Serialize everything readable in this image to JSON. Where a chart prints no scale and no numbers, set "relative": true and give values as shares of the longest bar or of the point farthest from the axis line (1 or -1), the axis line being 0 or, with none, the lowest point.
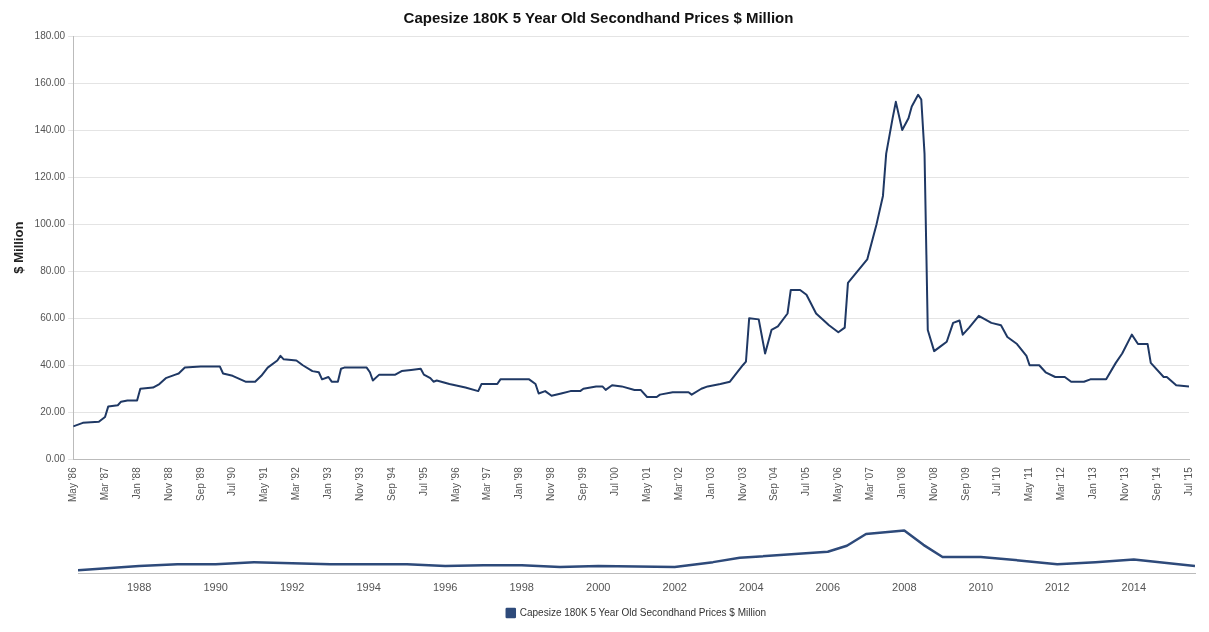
{
  "chart_data": [
    {
      "type": "line",
      "title": "Capesize 180K 5 Year Old Secondhand Prices $ Million",
      "ylabel": "$ Million",
      "x": [
        "1986-05",
        "1986-08",
        "1987-01",
        "1987-03",
        "1987-04",
        "1987-07",
        "1987-08",
        "1987-10",
        "1988-01",
        "1988-02",
        "1988-06",
        "1988-08",
        "1988-10",
        "1989-01",
        "1989-02",
        "1989-04",
        "1989-09",
        "1990-03",
        "1990-04",
        "1990-07",
        "1990-11",
        "1991-02",
        "1991-04",
        "1991-06",
        "1991-09",
        "1991-10",
        "1991-11",
        "1992-03",
        "1992-05",
        "1992-08",
        "1992-10",
        "1992-11",
        "1993-01",
        "1993-02",
        "1993-04",
        "1993-05",
        "1993-06",
        "1994-01",
        "1994-02",
        "1994-03",
        "1994-05",
        "1994-10",
        "1994-12",
        "1995-03",
        "1995-06",
        "1995-07",
        "1995-09",
        "1995-10",
        "1995-11",
        "1996-03",
        "1996-08",
        "1996-12",
        "1997-01",
        "1997-06",
        "1997-07",
        "1998-04",
        "1998-06",
        "1998-07",
        "1998-09",
        "1998-11",
        "1999-02",
        "1999-05",
        "1999-08",
        "1999-09",
        "2000-01",
        "2000-03",
        "2000-04",
        "2000-06",
        "2000-09",
        "2001-01",
        "2001-03",
        "2001-05",
        "2001-08",
        "2001-09",
        "2002-01",
        "2002-06",
        "2002-07",
        "2002-10",
        "2002-12",
        "2003-04",
        "2003-07",
        "2003-11",
        "2003-12",
        "2004-01",
        "2004-04",
        "2004-06",
        "2004-08",
        "2004-10",
        "2005-01",
        "2005-02",
        "2005-05",
        "2005-07",
        "2005-10",
        "2006-02",
        "2006-05",
        "2006-07",
        "2006-08",
        "2006-11",
        "2007-02",
        "2007-05",
        "2007-07",
        "2007-08",
        "2007-10",
        "2007-11",
        "2008-01",
        "2008-03",
        "2008-04",
        "2008-06",
        "2008-07",
        "2008-08",
        "2008-09",
        "2008-11",
        "2009-01",
        "2009-03",
        "2009-05",
        "2009-07",
        "2009-08",
        "2009-10",
        "2010-01",
        "2010-05",
        "2010-08",
        "2010-10",
        "2011-01",
        "2011-04",
        "2011-05",
        "2011-08",
        "2011-10",
        "2012-01",
        "2012-04",
        "2012-06",
        "2012-10",
        "2012-12",
        "2013-05",
        "2013-08",
        "2013-10",
        "2014-01",
        "2014-03",
        "2014-06",
        "2014-07",
        "2014-11",
        "2014-12",
        "2015-03",
        "2015-07"
      ],
      "series": [
        {
          "color": "#1f3864",
          "values": [
            14,
            15.5,
            16,
            18,
            22.5,
            23,
            24.5,
            25,
            25,
            30,
            30.5,
            32,
            34.5,
            36,
            36.5,
            39,
            39.5,
            39.5,
            36.5,
            35.5,
            33,
            33,
            35.5,
            39,
            42,
            44,
            42.5,
            42,
            40,
            37.5,
            37,
            34,
            35,
            33,
            33,
            38.5,
            39,
            39,
            37,
            33.5,
            36,
            36,
            37.5,
            38,
            38.5,
            36,
            34.5,
            33,
            33.5,
            32,
            30.5,
            29,
            32,
            32,
            34,
            34,
            32,
            28,
            29,
            27,
            28,
            29,
            29,
            30,
            31,
            31,
            29.5,
            31.5,
            31,
            29.5,
            29.5,
            26.5,
            26.5,
            27.5,
            28.5,
            28.5,
            27.5,
            30,
            31,
            32,
            33,
            40,
            41.5,
            60,
            59.5,
            45,
            55,
            56.5,
            62,
            72,
            72,
            70,
            62,
            57,
            54,
            56,
            75,
            80,
            85,
            100,
            112,
            130,
            145,
            152,
            140,
            145,
            150,
            155,
            153,
            130,
            55,
            46,
            48,
            50,
            58,
            59,
            53,
            56,
            61,
            58,
            57,
            52,
            49,
            44,
            40,
            40,
            37,
            35,
            35,
            33,
            33,
            34,
            34,
            41,
            45,
            53,
            49,
            49,
            41,
            35,
            35,
            31.5,
            31
          ]
        }
      ],
      "xlim": [
        "1986-05",
        "2015-07"
      ],
      "xticks": [
        {
          "value": "1986-05",
          "label": "May '86"
        },
        {
          "value": "1987-03",
          "label": "Mar '87"
        },
        {
          "value": "1988-01",
          "label": "Jan '88"
        },
        {
          "value": "1988-11",
          "label": "Nov '88"
        },
        {
          "value": "1989-09",
          "label": "Sep '89"
        },
        {
          "value": "1990-07",
          "label": "Jul '90"
        },
        {
          "value": "1991-05",
          "label": "May '91"
        },
        {
          "value": "1992-03",
          "label": "Mar '92"
        },
        {
          "value": "1993-01",
          "label": "Jan '93"
        },
        {
          "value": "1993-11",
          "label": "Nov '93"
        },
        {
          "value": "1994-09",
          "label": "Sep '94"
        },
        {
          "value": "1995-07",
          "label": "Jul '95"
        },
        {
          "value": "1996-05",
          "label": "May '96"
        },
        {
          "value": "1997-03",
          "label": "Mar '97"
        },
        {
          "value": "1998-01",
          "label": "Jan '98"
        },
        {
          "value": "1998-11",
          "label": "Nov '98"
        },
        {
          "value": "1999-09",
          "label": "Sep '99"
        },
        {
          "value": "2000-07",
          "label": "Jul '00"
        },
        {
          "value": "2001-05",
          "label": "May '01"
        },
        {
          "value": "2002-03",
          "label": "Mar '02"
        },
        {
          "value": "2003-01",
          "label": "Jan '03"
        },
        {
          "value": "2003-11",
          "label": "Nov '03"
        },
        {
          "value": "2004-09",
          "label": "Sep '04"
        },
        {
          "value": "2005-07",
          "label": "Jul '05"
        },
        {
          "value": "2006-05",
          "label": "May '06"
        },
        {
          "value": "2007-03",
          "label": "Mar '07"
        },
        {
          "value": "2008-01",
          "label": "Jan '08"
        },
        {
          "value": "2008-11",
          "label": "Nov '08"
        },
        {
          "value": "2009-09",
          "label": "Sep '09"
        },
        {
          "value": "2010-07",
          "label": "Jul '10"
        },
        {
          "value": "2011-05",
          "label": "May '11"
        },
        {
          "value": "2012-03",
          "label": "Mar '12"
        },
        {
          "value": "2013-01",
          "label": "Jan '13"
        },
        {
          "value": "2013-11",
          "label": "Nov '13"
        },
        {
          "value": "2014-09",
          "label": "Sep '14"
        },
        {
          "value": "2015-07",
          "label": "Jul '15"
        }
      ],
      "ylim": [
        0,
        180
      ],
      "yticks": [
        {
          "value": 0,
          "label": "0.00"
        },
        {
          "value": 20,
          "label": "20.00"
        },
        {
          "value": 40,
          "label": "40.00"
        },
        {
          "value": 60,
          "label": "60.00"
        },
        {
          "value": 80,
          "label": "80.00"
        },
        {
          "value": 100,
          "label": "100.00"
        },
        {
          "value": 120,
          "label": "120.00"
        },
        {
          "value": 140,
          "label": "140.00"
        },
        {
          "value": 160,
          "label": "160.00"
        },
        {
          "value": 180,
          "label": "180.00"
        }
      ],
      "grid": "y",
      "marker": "none"
    },
    {
      "type": "line",
      "relative": true,
      "tick_labels": "x",
      "x": [
        1986.4,
        1988,
        1989,
        1990,
        1991,
        1993,
        1995,
        1996,
        1997,
        1998,
        1999,
        2000,
        2002,
        2003,
        2003.7,
        2006,
        2006.5,
        2007,
        2008,
        2008.5,
        2009,
        2010,
        2011,
        2012,
        2013,
        2014,
        2015.6
      ],
      "series": [
        {
          "name": "Capesize 180K 5 Year Old Secondhand Prices $ Million",
          "color": "#2e4a7a",
          "values": [
            0.08,
            0.18,
            0.22,
            0.22,
            0.27,
            0.22,
            0.22,
            0.18,
            0.2,
            0.2,
            0.16,
            0.18,
            0.16,
            0.27,
            0.37,
            0.51,
            0.65,
            0.92,
            1,
            0.67,
            0.39,
            0.39,
            0.31,
            0.22,
            0.27,
            0.33,
            0.18
          ]
        }
      ],
      "xlim": [
        1986.4,
        2015.6
      ],
      "xticks": [
        1988,
        1990,
        1992,
        1994,
        1996,
        1998,
        2000,
        2002,
        2004,
        2006,
        2008,
        2010,
        2012,
        2014
      ],
      "grid": false,
      "legend": "bottom",
      "marker": "none"
    }
  ]
}
